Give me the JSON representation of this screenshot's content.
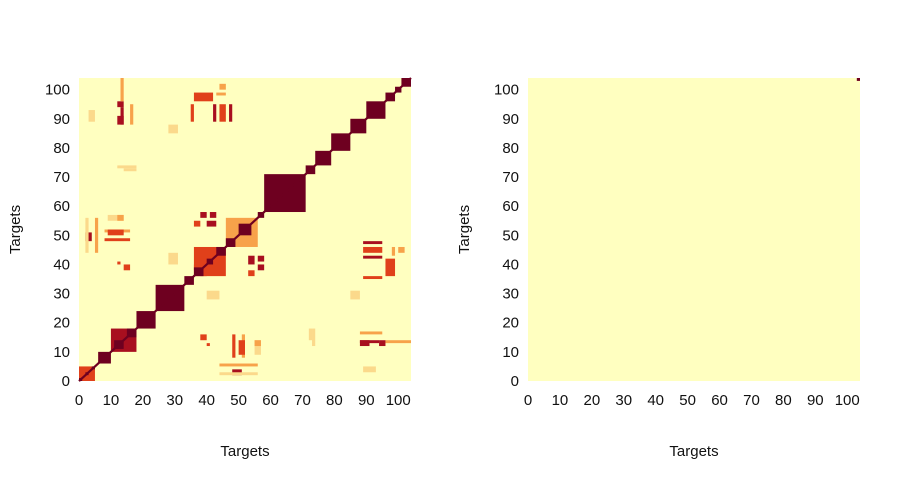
{
  "colors": {
    "background_cell": "#ffffc0",
    "full_block": "#6e0020",
    "strong": "#a80f1f",
    "red_orange": "#e0401a",
    "orange": "#f7a24a",
    "light_orange": "#fbd98b",
    "pale": "#fef2ad",
    "white": "#ffffff"
  },
  "chart_data": [
    {
      "type": "heatmap",
      "title": "",
      "xlabel": "Targets",
      "ylabel": "Targets",
      "xlim": [
        0,
        104
      ],
      "ylim": [
        0,
        104
      ],
      "xticks": [
        "0",
        "10",
        "20",
        "30",
        "40",
        "50",
        "60",
        "70",
        "80",
        "90",
        "100"
      ],
      "yticks": [
        "0",
        "10",
        "20",
        "30",
        "40",
        "50",
        "60",
        "70",
        "80",
        "90",
        "100"
      ],
      "background_value": 0.0,
      "diagonal_value": 1.0,
      "blocks": [
        {
          "x": [
            0,
            5
          ],
          "y": [
            0,
            5
          ],
          "value": 0.55
        },
        {
          "x": [
            0,
            1
          ],
          "y": [
            0,
            1
          ],
          "value": 1.0
        },
        {
          "x": [
            2,
            3
          ],
          "y": [
            2,
            3
          ],
          "value": 1.0
        },
        {
          "x": [
            4,
            5
          ],
          "y": [
            4,
            5
          ],
          "value": 1.0
        },
        {
          "x": [
            6,
            10
          ],
          "y": [
            6,
            10
          ],
          "value": 1.0
        },
        {
          "x": [
            10,
            18
          ],
          "y": [
            10,
            18
          ],
          "value": 0.75
        },
        {
          "x": [
            11,
            14
          ],
          "y": [
            11,
            14
          ],
          "value": 1.0
        },
        {
          "x": [
            15,
            18
          ],
          "y": [
            15,
            18
          ],
          "value": 1.0
        },
        {
          "x": [
            18,
            24
          ],
          "y": [
            18,
            24
          ],
          "value": 1.0
        },
        {
          "x": [
            24,
            33
          ],
          "y": [
            24,
            33
          ],
          "value": 1.0
        },
        {
          "x": [
            33,
            36
          ],
          "y": [
            33,
            36
          ],
          "value": 1.0
        },
        {
          "x": [
            36,
            46
          ],
          "y": [
            36,
            46
          ],
          "value": 0.6
        },
        {
          "x": [
            36,
            39
          ],
          "y": [
            36,
            39
          ],
          "value": 1.0
        },
        {
          "x": [
            40,
            42
          ],
          "y": [
            40,
            42
          ],
          "value": 1.0
        },
        {
          "x": [
            43,
            46
          ],
          "y": [
            43,
            46
          ],
          "value": 1.0
        },
        {
          "x": [
            46,
            56
          ],
          "y": [
            46,
            56
          ],
          "value": 0.5
        },
        {
          "x": [
            46,
            49
          ],
          "y": [
            46,
            49
          ],
          "value": 1.0
        },
        {
          "x": [
            50,
            54
          ],
          "y": [
            50,
            54
          ],
          "value": 1.0
        },
        {
          "x": [
            56,
            58
          ],
          "y": [
            56,
            58
          ],
          "value": 1.0
        },
        {
          "x": [
            58,
            71
          ],
          "y": [
            58,
            71
          ],
          "value": 1.0
        },
        {
          "x": [
            71,
            74
          ],
          "y": [
            71,
            74
          ],
          "value": 1.0
        },
        {
          "x": [
            74,
            79
          ],
          "y": [
            74,
            79
          ],
          "value": 1.0
        },
        {
          "x": [
            79,
            85
          ],
          "y": [
            79,
            85
          ],
          "value": 1.0
        },
        {
          "x": [
            85,
            90
          ],
          "y": [
            85,
            90
          ],
          "value": 1.0
        },
        {
          "x": [
            90,
            96
          ],
          "y": [
            90,
            96
          ],
          "value": 1.0
        },
        {
          "x": [
            96,
            99
          ],
          "y": [
            96,
            99
          ],
          "value": 1.0
        },
        {
          "x": [
            99,
            101
          ],
          "y": [
            99,
            101
          ],
          "value": 1.0
        },
        {
          "x": [
            101,
            104
          ],
          "y": [
            101,
            104
          ],
          "value": 1.0
        }
      ],
      "off_diagonal_symmetric": [
        {
          "x": [
            12,
            13
          ],
          "y": [
            40,
            41
          ],
          "value": 0.6
        },
        {
          "x": [
            38,
            40
          ],
          "y": [
            56,
            58
          ],
          "value": 0.8
        },
        {
          "x": [
            41,
            43
          ],
          "y": [
            56,
            58
          ],
          "value": 0.7
        },
        {
          "x": [
            38,
            40
          ],
          "y": [
            36,
            38
          ],
          "value": 0.65
        },
        {
          "x": [
            53,
            55
          ],
          "y": [
            40,
            43
          ],
          "value": 0.7
        },
        {
          "x": [
            53,
            55
          ],
          "y": [
            36,
            38
          ],
          "value": 0.65
        },
        {
          "x": [
            89,
            95
          ],
          "y": [
            42,
            43
          ],
          "value": 0.75
        },
        {
          "x": [
            89,
            95
          ],
          "y": [
            44,
            46
          ],
          "value": 0.55
        },
        {
          "x": [
            89,
            95
          ],
          "y": [
            35,
            36
          ],
          "value": 0.55
        },
        {
          "x": [
            89,
            95
          ],
          "y": [
            47,
            48
          ],
          "value": 0.8
        },
        {
          "x": [
            88,
            94
          ],
          "y": [
            13,
            14
          ],
          "value": 0.75
        },
        {
          "x": [
            88,
            95
          ],
          "y": [
            16,
            17
          ],
          "value": 0.5
        },
        {
          "x": [
            36,
            42
          ],
          "y": [
            96,
            99
          ],
          "value": 0.55
        },
        {
          "x": [
            44,
            46
          ],
          "y": [
            100,
            102
          ],
          "value": 0.5
        },
        {
          "x": [
            12,
            14
          ],
          "y": [
            88,
            91
          ],
          "value": 0.75
        },
        {
          "x": [
            12,
            14
          ],
          "y": [
            94,
            96
          ],
          "value": 0.7
        },
        {
          "x": [
            3,
            5
          ],
          "y": [
            89,
            93
          ],
          "value": 0.35
        },
        {
          "x": [
            2,
            4
          ],
          "y": [
            48,
            51
          ],
          "value": 0.7
        },
        {
          "x": [
            8,
            16
          ],
          "y": [
            48,
            49
          ],
          "value": 0.6
        },
        {
          "x": [
            8,
            16
          ],
          "y": [
            51,
            52
          ],
          "value": 0.5
        },
        {
          "x": [
            44,
            56
          ],
          "y": [
            5,
            6
          ],
          "value": 0.5
        },
        {
          "x": [
            44,
            56
          ],
          "y": [
            2,
            3
          ],
          "value": 0.4
        },
        {
          "x": [
            50,
            52
          ],
          "y": [
            9,
            14
          ],
          "value": 0.6
        },
        {
          "x": [
            55,
            57
          ],
          "y": [
            9,
            14
          ],
          "value": 0.4
        },
        {
          "x": [
            72,
            73
          ],
          "y": [
            14,
            18
          ],
          "value": 0.4
        },
        {
          "x": [
            38,
            40
          ],
          "y": [
            14,
            16
          ],
          "value": 0.6
        },
        {
          "x": [
            40,
            44
          ],
          "y": [
            28,
            31
          ],
          "value": 0.4
        },
        {
          "x": [
            12,
            18
          ],
          "y": [
            73,
            74
          ],
          "value": 0.35
        },
        {
          "x": [
            12,
            14
          ],
          "y": [
            55,
            57
          ],
          "value": 0.5
        },
        {
          "x": [
            85,
            88
          ],
          "y": [
            28,
            31
          ],
          "value": 0.3
        },
        {
          "x": [
            96,
            104
          ],
          "y": [
            13,
            14
          ],
          "value": 0.5
        },
        {
          "x": [
            98,
            99
          ],
          "y": [
            43,
            46
          ],
          "value": 0.5
        }
      ]
    },
    {
      "type": "heatmap",
      "title": "",
      "xlabel": "Targets",
      "ylabel": "Targets",
      "xlim": [
        0,
        104
      ],
      "ylim": [
        0,
        104
      ],
      "xticks": [
        "0",
        "10",
        "20",
        "30",
        "40",
        "50",
        "60",
        "70",
        "80",
        "90",
        "100"
      ],
      "yticks": [
        "0",
        "10",
        "20",
        "30",
        "40",
        "50",
        "60",
        "70",
        "80",
        "90",
        "100"
      ],
      "background_value": 0.0,
      "blocks": [
        {
          "x": [
            103,
            104
          ],
          "y": [
            103,
            104
          ],
          "value": 1.0
        }
      ],
      "off_diagonal_symmetric": []
    }
  ]
}
